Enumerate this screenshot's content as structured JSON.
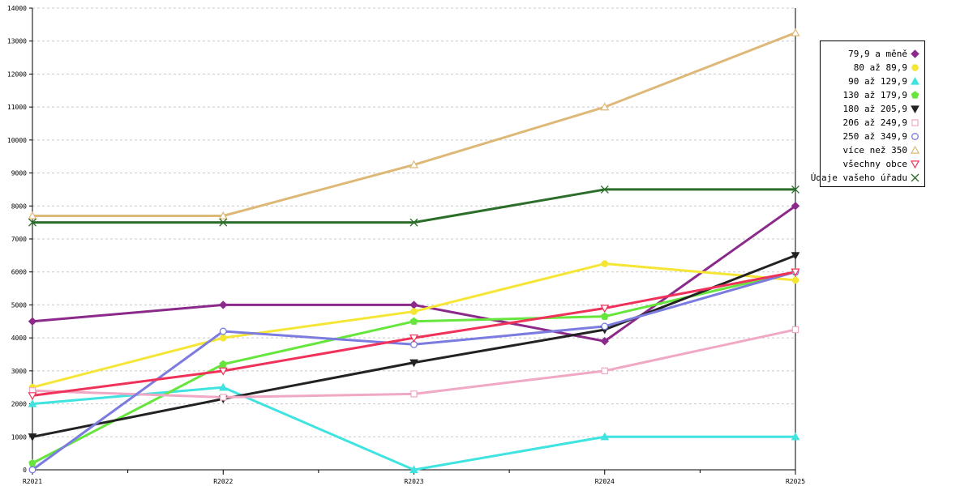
{
  "chart_data": {
    "type": "line",
    "title": "",
    "xlabel": "",
    "ylabel": "",
    "categories": [
      "R2021",
      "R2022",
      "R2023",
      "R2024",
      "R2025"
    ],
    "ylim": [
      0,
      14000
    ],
    "yticks": [
      0,
      1000,
      2000,
      3000,
      4000,
      5000,
      6000,
      7000,
      8000,
      9000,
      10000,
      11000,
      12000,
      13000,
      14000
    ],
    "grid": "horizontal dashed",
    "legend_position": "right",
    "series": [
      {
        "name": "79,9 a měně",
        "color": "#8b2a8b",
        "marker": "diamond",
        "values": [
          4500,
          5000,
          5000,
          3900,
          8000
        ]
      },
      {
        "name": "80 až 89,9",
        "color": "#f5e636",
        "marker": "circle-filled",
        "values": [
          2500,
          4000,
          4800,
          6250,
          5750
        ]
      },
      {
        "name": "90 až 129,9",
        "color": "#3fe3e0",
        "marker": "triangle-up-filled",
        "values": [
          2000,
          2500,
          0,
          1000,
          1000
        ]
      },
      {
        "name": "130 až 179,9",
        "color": "#66e63c",
        "marker": "pentagon-filled",
        "values": [
          200,
          3200,
          4500,
          4650,
          6000
        ]
      },
      {
        "name": "180 až 205,9",
        "color": "#222222",
        "marker": "triangle-down-filled",
        "values": [
          1000,
          2150,
          3250,
          4250,
          6500
        ]
      },
      {
        "name": "206 až 249,9",
        "color": "#f0a8c4",
        "marker": "square-open",
        "values": [
          2400,
          2200,
          2300,
          3000,
          4250
        ]
      },
      {
        "name": "250 až 349,9",
        "color": "#7b7be0",
        "marker": "circle-open",
        "values": [
          0,
          4200,
          3800,
          4350,
          6000
        ]
      },
      {
        "name": "více než 350",
        "color": "#ddb877",
        "marker": "triangle-up-open",
        "values": [
          7700,
          7700,
          9250,
          11000,
          13250
        ]
      },
      {
        "name": "všechny obce",
        "color": "#f0325a",
        "marker": "triangle-down-open",
        "values": [
          2250,
          3000,
          4000,
          4900,
          6000
        ]
      },
      {
        "name": "Údaje vašeho úřadu",
        "color": "#2a6e2a",
        "marker": "x",
        "values": [
          7500,
          7500,
          7500,
          8500,
          8500
        ]
      }
    ]
  }
}
